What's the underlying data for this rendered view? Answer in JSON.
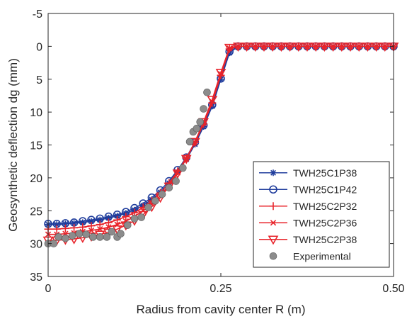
{
  "chart_data": {
    "type": "line",
    "title": "",
    "xlabel": "Radius from cavity center R (m)",
    "ylabel": "Geosynthetic deflection dg (mm)",
    "xlim": [
      0,
      0.5
    ],
    "ylim": [
      -5,
      35
    ],
    "y_reversed": true,
    "grid": false,
    "legend_position": "bottom-right",
    "x_ticks": [
      0,
      0.25,
      0.5
    ],
    "x_tick_labels": [
      "0",
      "0.25",
      "0.50"
    ],
    "y_ticks": [
      -5,
      0,
      5,
      10,
      15,
      20,
      25,
      30,
      35
    ],
    "y_tick_labels": [
      "-5",
      "0",
      "5",
      "10",
      "15",
      "20",
      "25",
      "30",
      "35"
    ],
    "series": [
      {
        "name": "TWH25C1P38",
        "color": "#1f3c9c",
        "marker": "asterisk",
        "x": [
          0,
          0.0125,
          0.025,
          0.0375,
          0.05,
          0.0625,
          0.075,
          0.0875,
          0.1,
          0.1125,
          0.125,
          0.1375,
          0.15,
          0.1625,
          0.175,
          0.1875,
          0.2,
          0.2125,
          0.225,
          0.2375,
          0.25,
          0.2625,
          0.275,
          0.2875,
          0.3,
          0.3125,
          0.325,
          0.3375,
          0.35,
          0.3625,
          0.375,
          0.3875,
          0.4,
          0.4125,
          0.425,
          0.4375,
          0.45,
          0.4625,
          0.475,
          0.4875,
          0.5
        ],
        "y": [
          27.1,
          27.1,
          27.0,
          26.9,
          26.8,
          26.6,
          26.4,
          26.1,
          25.8,
          25.4,
          24.9,
          24.2,
          23.3,
          22.2,
          20.8,
          19.1,
          17.2,
          14.9,
          12.2,
          9.1,
          5.0,
          1.0,
          0,
          0,
          0,
          0,
          0,
          0,
          0,
          0,
          0,
          0,
          0,
          0,
          0,
          0,
          0,
          0,
          0,
          0,
          0
        ]
      },
      {
        "name": "TWH25C1P42",
        "color": "#1f3c9c",
        "marker": "circle",
        "x": [
          0,
          0.0125,
          0.025,
          0.0375,
          0.05,
          0.0625,
          0.075,
          0.0875,
          0.1,
          0.1125,
          0.125,
          0.1375,
          0.15,
          0.1625,
          0.175,
          0.1875,
          0.2,
          0.2125,
          0.225,
          0.2375,
          0.25,
          0.2625,
          0.275,
          0.2875,
          0.3,
          0.3125,
          0.325,
          0.3375,
          0.35,
          0.3625,
          0.375,
          0.3875,
          0.4,
          0.4125,
          0.425,
          0.4375,
          0.45,
          0.4625,
          0.475,
          0.4875,
          0.5
        ],
        "y": [
          27.0,
          27.0,
          26.9,
          26.8,
          26.6,
          26.4,
          26.2,
          25.9,
          25.6,
          25.2,
          24.6,
          23.9,
          23.0,
          21.9,
          20.5,
          18.8,
          16.9,
          14.6,
          12.0,
          8.9,
          4.9,
          0.8,
          0,
          0,
          0,
          0,
          0,
          0,
          0,
          0,
          0,
          0,
          0,
          0,
          0,
          0,
          0,
          0,
          0,
          0,
          0
        ]
      },
      {
        "name": "TWH25C2P32",
        "color": "#e8242b",
        "marker": "plus",
        "x": [
          0,
          0.0125,
          0.025,
          0.0375,
          0.05,
          0.0625,
          0.075,
          0.0875,
          0.1,
          0.1125,
          0.125,
          0.1375,
          0.15,
          0.1625,
          0.175,
          0.1875,
          0.2,
          0.2125,
          0.225,
          0.2375,
          0.25,
          0.2625,
          0.275,
          0.2875,
          0.3,
          0.3125,
          0.325,
          0.3375,
          0.35,
          0.3625,
          0.375,
          0.3875,
          0.4,
          0.4125,
          0.425,
          0.4375,
          0.45,
          0.4625,
          0.475,
          0.4875,
          0.5
        ],
        "y": [
          27.8,
          27.8,
          27.7,
          27.6,
          27.5,
          27.3,
          27.1,
          26.8,
          26.4,
          25.9,
          25.3,
          24.5,
          23.5,
          22.3,
          20.8,
          19.0,
          17.0,
          14.6,
          11.8,
          8.6,
          4.4,
          0.4,
          0,
          0,
          0,
          0,
          0,
          0,
          0,
          0,
          0,
          0,
          0,
          0,
          0,
          0,
          0,
          0,
          0,
          0,
          0
        ]
      },
      {
        "name": "TWH25C2P36",
        "color": "#e8242b",
        "marker": "x",
        "x": [
          0,
          0.0125,
          0.025,
          0.0375,
          0.05,
          0.0625,
          0.075,
          0.0875,
          0.1,
          0.1125,
          0.125,
          0.1375,
          0.15,
          0.1625,
          0.175,
          0.1875,
          0.2,
          0.2125,
          0.225,
          0.2375,
          0.25,
          0.2625,
          0.275,
          0.2875,
          0.3,
          0.3125,
          0.325,
          0.3375,
          0.35,
          0.3625,
          0.375,
          0.3875,
          0.4,
          0.4125,
          0.425,
          0.4375,
          0.45,
          0.4625,
          0.475,
          0.4875,
          0.5
        ],
        "y": [
          28.6,
          28.6,
          28.5,
          28.4,
          28.2,
          28.0,
          27.8,
          27.5,
          27.1,
          26.6,
          25.9,
          25.0,
          24.0,
          22.7,
          21.1,
          19.2,
          17.1,
          14.6,
          11.7,
          8.4,
          4.2,
          0.3,
          0,
          0,
          0,
          0,
          0,
          0,
          0,
          0,
          0,
          0,
          0,
          0,
          0,
          0,
          0,
          0,
          0,
          0,
          0
        ]
      },
      {
        "name": "TWH25C2P38",
        "color": "#e8242b",
        "marker": "triangle-down",
        "x": [
          0,
          0.0125,
          0.025,
          0.0375,
          0.05,
          0.0625,
          0.075,
          0.0875,
          0.1,
          0.1125,
          0.125,
          0.1375,
          0.15,
          0.1625,
          0.175,
          0.1875,
          0.2,
          0.2125,
          0.225,
          0.2375,
          0.25,
          0.2625,
          0.275,
          0.2875,
          0.3,
          0.3125,
          0.325,
          0.3375,
          0.35,
          0.3625,
          0.375,
          0.3875,
          0.4,
          0.4125,
          0.425,
          0.4375,
          0.45,
          0.4625,
          0.475,
          0.4875,
          0.5
        ],
        "y": [
          29.5,
          29.5,
          29.4,
          29.3,
          29.1,
          28.9,
          28.6,
          28.3,
          27.8,
          27.2,
          26.5,
          25.6,
          24.4,
          23.0,
          21.3,
          19.3,
          17.1,
          14.5,
          11.5,
          8.1,
          4.0,
          0.2,
          0,
          0,
          0,
          0,
          0,
          0,
          0,
          0,
          0,
          0,
          0,
          0,
          0,
          0,
          0,
          0,
          0,
          0,
          0
        ]
      },
      {
        "name": "Experimental",
        "color": "#8c8c8c",
        "marker": "filled-circle",
        "x": [
          0,
          0.008,
          0.015,
          0.025,
          0.035,
          0.045,
          0.055,
          0.065,
          0.075,
          0.085,
          0.092,
          0.1,
          0.105,
          0.115,
          0.125,
          0.135,
          0.145,
          0.155,
          0.165,
          0.175,
          0.185,
          0.195,
          0.205,
          0.21,
          0.215,
          0.22,
          0.225,
          0.23
        ],
        "y": [
          30,
          30,
          29,
          29.2,
          28.8,
          28.5,
          28.6,
          29,
          29,
          29,
          28.2,
          29,
          28.5,
          27.2,
          26.2,
          26.0,
          24.5,
          23.5,
          22.5,
          21.5,
          20.5,
          18.5,
          14.5,
          13.0,
          12.5,
          11.5,
          9.5,
          7.0
        ]
      }
    ]
  }
}
